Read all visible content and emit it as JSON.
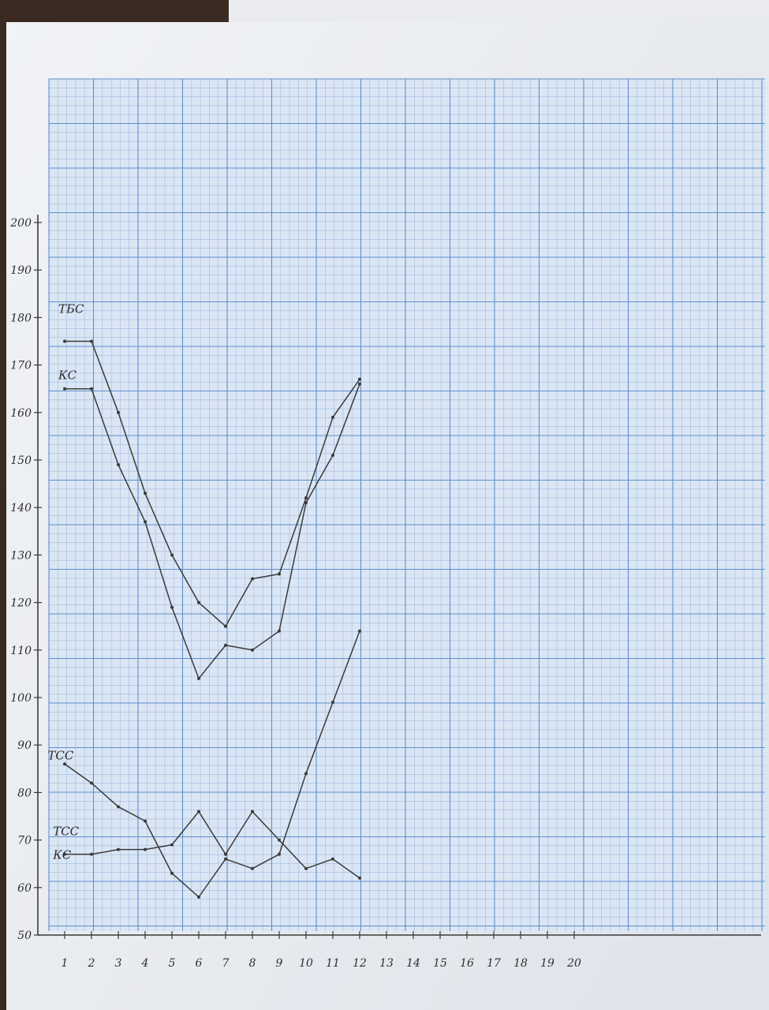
{
  "chart_data": {
    "type": "line",
    "title": "",
    "xlabel": "",
    "ylabel": "",
    "grid": true,
    "xlim": [
      0,
      20
    ],
    "ylim": [
      50,
      200
    ],
    "x_ticks": [
      1,
      2,
      3,
      4,
      5,
      6,
      7,
      8,
      9,
      10,
      11,
      12,
      13,
      14,
      15,
      16,
      17,
      18,
      19,
      20
    ],
    "x_tick_labels": [
      "1",
      "2",
      "3",
      "4",
      "5",
      "6",
      "7",
      "8",
      "9",
      "10",
      "11",
      "12",
      "13",
      "14",
      "15",
      "16",
      "17",
      "18",
      "19",
      "20"
    ],
    "y_ticks": [
      50,
      60,
      70,
      80,
      90,
      100,
      110,
      120,
      130,
      140,
      150,
      160,
      170,
      180,
      190,
      200
    ],
    "y_tick_labels": [
      "50",
      "60",
      "70",
      "80",
      "90",
      "100",
      "110",
      "120",
      "130",
      "140",
      "150",
      "160",
      "170",
      "180",
      "190",
      "200"
    ],
    "annotations": [
      {
        "text": "ТБС",
        "x": 1.0,
        "y": 181
      },
      {
        "text": "КС",
        "x": 1.0,
        "y": 167
      },
      {
        "text": "ТСС",
        "x": 0.6,
        "y": 87
      },
      {
        "text": "ТСС",
        "x": 0.8,
        "y": 71
      },
      {
        "text": "КС",
        "x": 0.8,
        "y": 66
      }
    ],
    "series": [
      {
        "x": [
          1,
          2,
          3,
          4,
          5,
          6,
          7,
          8,
          9,
          10,
          11,
          12
        ],
        "values": [
          175,
          175,
          160,
          143,
          130,
          120,
          115,
          125,
          126,
          142,
          159,
          167
        ]
      },
      {
        "x": [
          1,
          2,
          3,
          4,
          5,
          6,
          7,
          8,
          9,
          10,
          11,
          12
        ],
        "values": [
          165,
          165,
          149,
          137,
          119,
          104,
          111,
          110,
          114,
          141,
          151,
          166
        ]
      },
      {
        "x": [
          1,
          2,
          3,
          4,
          5,
          6,
          7,
          8,
          9,
          10,
          11,
          12
        ],
        "values": [
          86,
          82,
          77,
          74,
          63,
          58,
          66,
          64,
          67,
          84,
          99,
          114
        ]
      },
      {
        "x": [
          1,
          2,
          3,
          4,
          5,
          6,
          7,
          8,
          9,
          10,
          11,
          12
        ],
        "values": [
          67,
          67,
          68,
          68,
          69,
          76,
          67,
          76,
          70,
          64,
          66,
          62
        ]
      }
    ],
    "colors": {
      "grid_minor": "#9fbce0",
      "grid_major": "#5f8fcc",
      "ink": "#3a3a3a"
    }
  }
}
